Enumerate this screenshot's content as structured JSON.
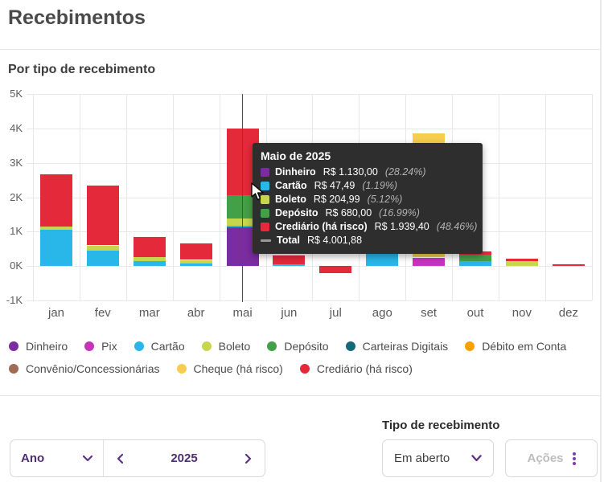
{
  "header": {
    "title": "Recebimentos"
  },
  "chart_data": {
    "type": "bar",
    "stacked": true,
    "title": "Por tipo de recebimento",
    "categories": [
      "jan",
      "fev",
      "mar",
      "abr",
      "mai",
      "jun",
      "jul",
      "ago",
      "set",
      "out",
      "nov",
      "dez"
    ],
    "y_axis": {
      "ticks": [
        "5K",
        "4K",
        "3K",
        "2K",
        "1K",
        "0K",
        "-1K"
      ],
      "max": 5000,
      "min": -1000
    },
    "legend_position": "bottom",
    "highlighted_category": "mai",
    "series": [
      {
        "name": "Dinheiro",
        "color": "#7b2ca0",
        "values": [
          0,
          0,
          0,
          0,
          1130,
          0,
          0,
          0,
          0,
          0,
          0,
          0
        ]
      },
      {
        "name": "Pix",
        "color": "#c435bc",
        "values": [
          0,
          0,
          0,
          0,
          0,
          0,
          0,
          0,
          250,
          0,
          0,
          0
        ]
      },
      {
        "name": "Cartão",
        "color": "#29b6e8",
        "values": [
          1050,
          450,
          150,
          70,
          47.49,
          60,
          0,
          350,
          0,
          140,
          0,
          0
        ]
      },
      {
        "name": "Boleto",
        "color": "#c6d74d",
        "values": [
          90,
          150,
          120,
          110,
          204.99,
          0,
          0,
          0,
          0,
          0,
          140,
          0
        ]
      },
      {
        "name": "Depósito",
        "color": "#43a047",
        "values": [
          0,
          0,
          0,
          0,
          680,
          0,
          0,
          0,
          0,
          190,
          0,
          0
        ]
      },
      {
        "name": "Carteiras Digitais",
        "color": "#17697a",
        "values": [
          0,
          0,
          0,
          0,
          0,
          0,
          0,
          0,
          0,
          0,
          0,
          0
        ]
      },
      {
        "name": "Débito em Conta",
        "color": "#f9a000",
        "values": [
          0,
          0,
          0,
          0,
          0,
          0,
          0,
          0,
          0,
          0,
          0,
          0
        ]
      },
      {
        "name": "Convênio/Concessionárias",
        "color": "#a06b55",
        "values": [
          0,
          0,
          0,
          0,
          0,
          0,
          0,
          0,
          0,
          0,
          0,
          0
        ]
      },
      {
        "name": "Cheque (há risco)",
        "color": "#f7cd4d",
        "values": [
          0,
          0,
          0,
          0,
          0,
          0,
          0,
          0,
          3600,
          0,
          0,
          0
        ]
      },
      {
        "name": "Crediário (há risco)",
        "color": "#e4293a",
        "values": [
          1530,
          1730,
          570,
          470,
          1939.4,
          240,
          -200,
          0,
          0,
          90,
          70,
          60
        ]
      }
    ]
  },
  "tooltip": {
    "title": "Maio de 2025",
    "rows": [
      {
        "label": "Dinheiro",
        "value": "R$ 1.130,00",
        "percent": "(28.24%)",
        "color": "#7b2ca0"
      },
      {
        "label": "Cartão",
        "value": "R$ 47,49",
        "percent": "(1.19%)",
        "color": "#29b6e8"
      },
      {
        "label": "Boleto",
        "value": "R$ 204,99",
        "percent": "(5.12%)",
        "color": "#c6d74d"
      },
      {
        "label": "Depósito",
        "value": "R$ 680,00",
        "percent": "(16.99%)",
        "color": "#43a047"
      },
      {
        "label": "Crediário (há risco)",
        "value": "R$ 1.939,40",
        "percent": "(48.46%)",
        "color": "#e4293a"
      }
    ],
    "total": {
      "label": "Total",
      "value": "R$ 4.001,88",
      "dash_color": "#999999"
    }
  },
  "controls": {
    "period_type_value": "Ano",
    "year_value": "2025",
    "filter_label": "Tipo de recebimento",
    "filter_value": "Em aberto",
    "actions_label": "Ações"
  },
  "colors": {
    "accent_purple": "#5d3384",
    "divider": "#e4e4e4",
    "tooltip_bg": "#2e2e2e"
  }
}
